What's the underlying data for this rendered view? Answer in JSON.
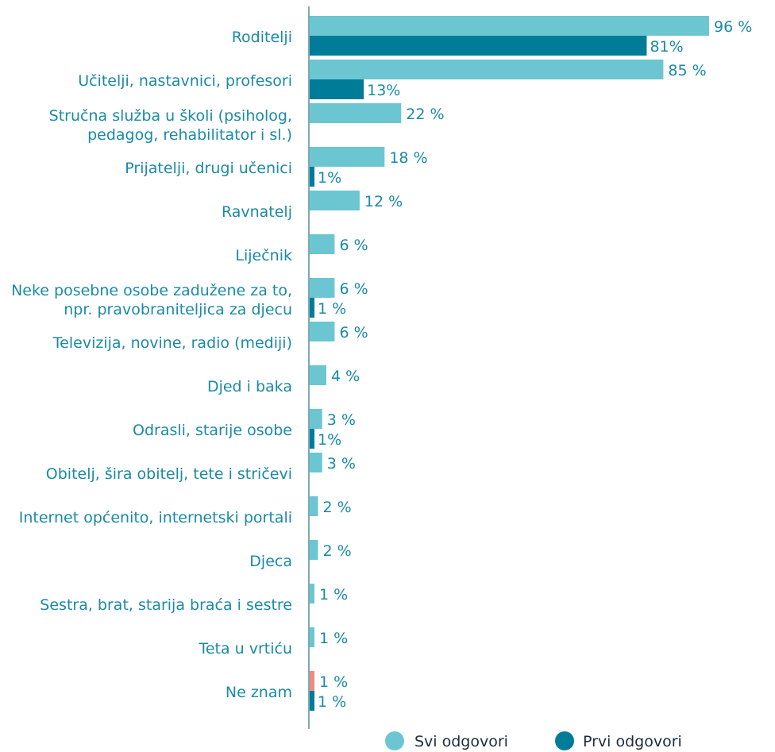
{
  "chart_data": {
    "type": "bar",
    "orientation": "horizontal",
    "grid": false,
    "legend_position": "bottom-right",
    "colors": {
      "svi": "#6cc6d1",
      "prvi": "#007c99",
      "ne_znam_svi": "#ef8b80",
      "axis": "#7ea8b8"
    },
    "categories": [
      "Roditelji",
      "Učitelji, nastavnici, profesori",
      "Stručna služba u školi (psiholog, pedagog, rehabilitator i sl.)",
      "Prijatelji, drugi učenici",
      "Ravnatelj",
      "Liječnik",
      "Neke posebne osobe zadužene za to, npr. pravobraniteljica za djecu",
      "Televizija, novine, radio (mediji)",
      "Djed i baka",
      "Odrasli, starije osobe",
      "Obitelj, šira obitelj, tete i stričevi",
      "Internet općenito, internetski portali",
      "Djeca",
      "Sestra, brat, starija braća i sestre",
      "Teta u vrtiću",
      "Ne znam"
    ],
    "category_lines": [
      [
        "Roditelji"
      ],
      [
        "Učitelji, nastavnici, profesori"
      ],
      [
        "Stručna služba u školi (psiholog,",
        "pedagog, rehabilitator i sl.)"
      ],
      [
        "Prijatelji, drugi učenici"
      ],
      [
        "Ravnatelj"
      ],
      [
        "Liječnik"
      ],
      [
        "Neke posebne osobe zadužene za to,",
        "npr. pravobraniteljica za djecu"
      ],
      [
        "Televizija, novine, radio (mediji)"
      ],
      [
        "Djed i baka"
      ],
      [
        "Odrasli, starije osobe"
      ],
      [
        "Obitelj, šira obitelj, tete i stričevi"
      ],
      [
        "Internet općenito, internetski portali"
      ],
      [
        "Djeca"
      ],
      [
        "Sestra, brat, starija braća i sestre"
      ],
      [
        "Teta u vrtiću"
      ],
      [
        "Ne znam"
      ]
    ],
    "series": [
      {
        "name": "Svi odgovori",
        "values": [
          96,
          85,
          22,
          18,
          12,
          6,
          6,
          6,
          4,
          3,
          3,
          2,
          2,
          1,
          1,
          1
        ],
        "labels": [
          "96 %",
          "85 %",
          "22 %",
          "18 %",
          "12 %",
          "6 %",
          "6 %",
          "6 %",
          "4 %",
          "3 %",
          "3 %",
          "2 %",
          "2 %",
          "1 %",
          "1 %",
          "1 %"
        ]
      },
      {
        "name": "Prvi odgovori",
        "values": [
          81,
          13,
          null,
          1,
          null,
          null,
          1,
          null,
          null,
          1,
          null,
          null,
          null,
          null,
          null,
          1
        ],
        "labels": [
          "81%",
          "13%",
          null,
          "1%",
          null,
          null,
          "1 %",
          null,
          null,
          "1%",
          null,
          null,
          null,
          null,
          null,
          "1 %"
        ]
      }
    ],
    "xlim": [
      0,
      100
    ]
  }
}
